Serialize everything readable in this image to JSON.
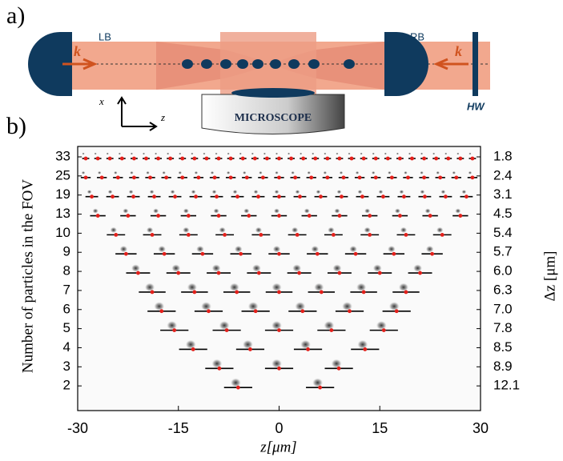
{
  "panel_a": {
    "label": "a)",
    "left_lens": "LB",
    "right_lens": "RB",
    "k_left": "k",
    "k_right": "k",
    "axis_x": "x",
    "axis_z": "z",
    "microscope": "MICROSCOPE",
    "waveplate": "HW"
  },
  "chart_data": {
    "type": "particle_rows",
    "panel_label": "b)",
    "xlabel": "z[μm]",
    "ylabel": "Number of particles in the FOV",
    "y2label": "Δz [μm]",
    "xlim": [
      -30,
      30
    ],
    "xticks": [
      -30,
      -15,
      0,
      15,
      30
    ],
    "rows": [
      {
        "count": 33,
        "dz": "1.8",
        "z": [
          -28.8,
          -27,
          -25.2,
          -23.4,
          -21.6,
          -19.8,
          -18,
          -16.2,
          -14.4,
          -12.6,
          -10.8,
          -9,
          -7.2,
          -5.4,
          -3.6,
          -1.8,
          0,
          1.8,
          3.6,
          5.4,
          7.2,
          9,
          10.8,
          12.6,
          14.4,
          16.2,
          18,
          19.8,
          21.6,
          23.4,
          25.2,
          27,
          28.8
        ]
      },
      {
        "count": 25,
        "dz": "2.4",
        "z": [
          -28.8,
          -26.4,
          -24,
          -21.6,
          -19.2,
          -16.8,
          -14.4,
          -12,
          -9.6,
          -7.2,
          -4.8,
          -2.4,
          0,
          2.4,
          4.8,
          7.2,
          9.6,
          12,
          14.4,
          16.8,
          19.2,
          21.6,
          24,
          26.4,
          28.8
        ]
      },
      {
        "count": 19,
        "dz": "3.1",
        "z": [
          -27.9,
          -24.8,
          -21.7,
          -18.6,
          -15.5,
          -12.4,
          -9.3,
          -6.2,
          -3.1,
          0,
          3.1,
          6.2,
          9.3,
          12.4,
          15.5,
          18.6,
          21.7,
          24.8,
          27.9
        ]
      },
      {
        "count": 13,
        "dz": "4.5",
        "z": [
          -27,
          -22.5,
          -18,
          -13.5,
          -9,
          -4.5,
          0,
          4.5,
          9,
          13.5,
          18,
          22.5,
          27
        ]
      },
      {
        "count": 10,
        "dz": "5.4",
        "z": [
          -24.3,
          -18.9,
          -13.5,
          -8.1,
          -2.7,
          2.7,
          8.1,
          13.5,
          18.9,
          24.3
        ]
      },
      {
        "count": 9,
        "dz": "5.7",
        "z": [
          -22.8,
          -17.1,
          -11.4,
          -5.7,
          0,
          5.7,
          11.4,
          17.1,
          22.8
        ]
      },
      {
        "count": 8,
        "dz": "6.0",
        "z": [
          -21,
          -15,
          -9,
          -3,
          3,
          9,
          15,
          21
        ]
      },
      {
        "count": 7,
        "dz": "6.3",
        "z": [
          -18.9,
          -12.6,
          -6.3,
          0,
          6.3,
          12.6,
          18.9
        ]
      },
      {
        "count": 6,
        "dz": "7.0",
        "z": [
          -17.5,
          -10.5,
          -3.5,
          3.5,
          10.5,
          17.5
        ]
      },
      {
        "count": 5,
        "dz": "7.8",
        "z": [
          -15.6,
          -7.8,
          0,
          7.8,
          15.6
        ]
      },
      {
        "count": 4,
        "dz": "8.5",
        "z": [
          -12.8,
          -4.3,
          4.3,
          12.8
        ]
      },
      {
        "count": 3,
        "dz": "8.9",
        "z": [
          -8.9,
          0,
          8.9
        ]
      },
      {
        "count": 2,
        "dz": "12.1",
        "z": [
          -6.1,
          6.1
        ]
      }
    ]
  }
}
